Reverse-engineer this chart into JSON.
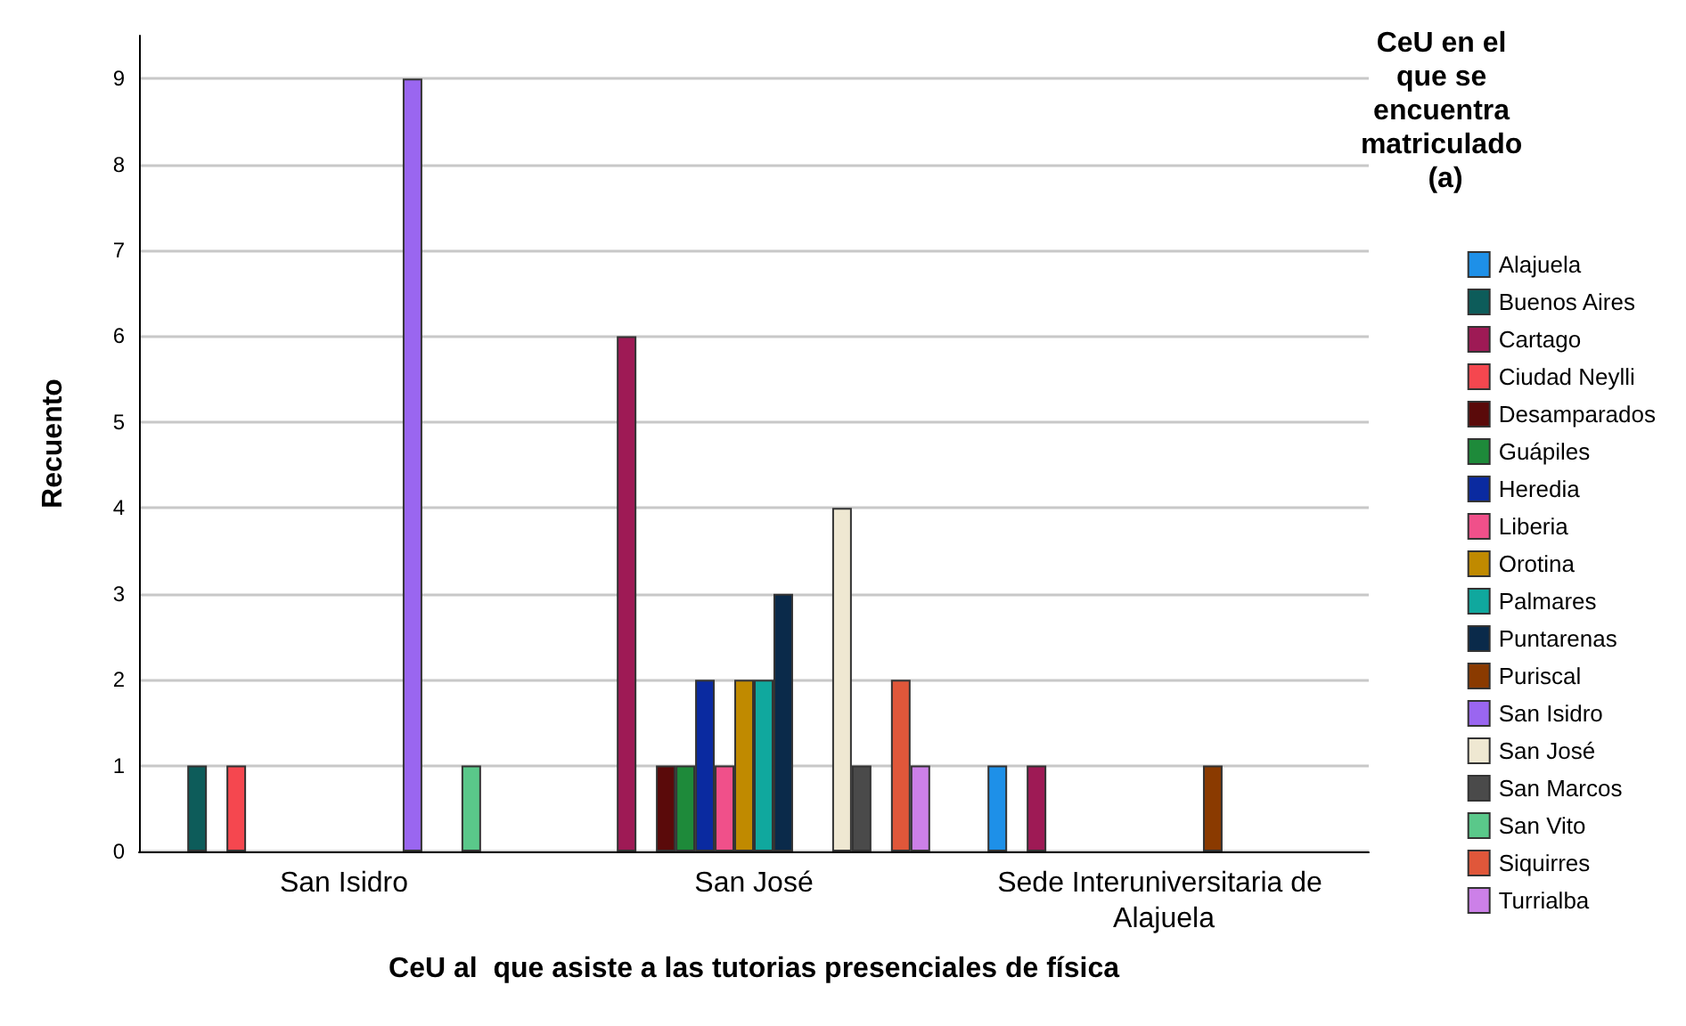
{
  "chart_data": {
    "type": "bar",
    "xlabel": "CeU al  que asiste a las tutorias presenciales de física",
    "ylabel": "Recuento",
    "legend_title": "CeU en el que se encuentra matriculado (a)",
    "categories": [
      "San Isidro",
      "San José",
      "Sede Interuniversitaria de Alajuela"
    ],
    "series": [
      {
        "name": "Alajuela",
        "color": "#1e90e8",
        "values": [
          null,
          null,
          1
        ]
      },
      {
        "name": "Buenos Aires",
        "color": "#0d5c5a",
        "values": [
          1,
          null,
          null
        ]
      },
      {
        "name": "Cartago",
        "color": "#9e1a55",
        "values": [
          null,
          6,
          1
        ]
      },
      {
        "name": "Ciudad Neylli",
        "color": "#f5474f",
        "values": [
          1,
          null,
          null
        ]
      },
      {
        "name": "Desamparados",
        "color": "#5a0a0a",
        "values": [
          null,
          1,
          null
        ]
      },
      {
        "name": "Guápiles",
        "color": "#1e8a3a",
        "values": [
          null,
          1,
          null
        ]
      },
      {
        "name": "Heredia",
        "color": "#0a2aa0",
        "values": [
          null,
          2,
          null
        ]
      },
      {
        "name": "Liberia",
        "color": "#f0508a",
        "values": [
          null,
          1,
          null
        ]
      },
      {
        "name": "Orotina",
        "color": "#c08a00",
        "values": [
          null,
          2,
          null
        ]
      },
      {
        "name": "Palmares",
        "color": "#10a89e",
        "values": [
          null,
          2,
          null
        ]
      },
      {
        "name": "Puntarenas",
        "color": "#0a2a4a",
        "values": [
          null,
          3,
          null
        ]
      },
      {
        "name": "Puriscal",
        "color": "#8a3a00",
        "values": [
          null,
          null,
          1
        ]
      },
      {
        "name": "San Isidro",
        "color": "#9a66f0",
        "values": [
          9,
          null,
          null
        ]
      },
      {
        "name": "San José",
        "color": "#efe8d2",
        "values": [
          null,
          4,
          null
        ]
      },
      {
        "name": "San Marcos",
        "color": "#4a4a4a",
        "values": [
          null,
          1,
          null
        ]
      },
      {
        "name": "San Vito",
        "color": "#5ac88a",
        "values": [
          1,
          null,
          null
        ]
      },
      {
        "name": "Siquirres",
        "color": "#e0573a",
        "values": [
          null,
          2,
          null
        ]
      },
      {
        "name": "Turrialba",
        "color": "#cc80e8",
        "values": [
          null,
          1,
          null
        ]
      }
    ],
    "ylim": [
      0,
      9.5
    ],
    "yticks": [
      0,
      1,
      2,
      3,
      4,
      5,
      6,
      7,
      8,
      9
    ],
    "grid": "y",
    "legend": "right"
  }
}
